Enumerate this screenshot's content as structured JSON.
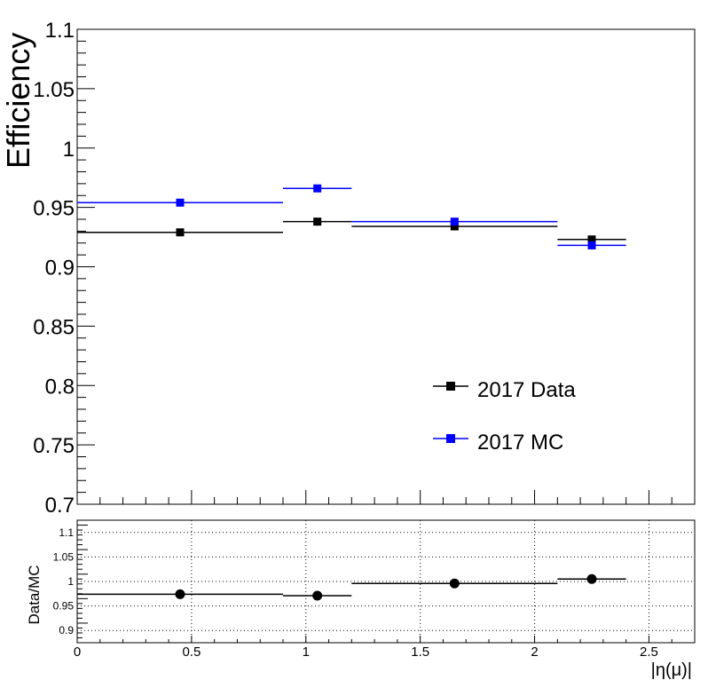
{
  "chart_data": [
    {
      "type": "scatter",
      "ylabel": "Efficiency",
      "xlim": [
        0,
        2.7
      ],
      "ylim": [
        0.7,
        1.1
      ],
      "yticks": [
        "0.7",
        "0.75",
        "0.8",
        "0.85",
        "0.9",
        "0.95",
        "1",
        "1.05",
        "1.1"
      ],
      "legend_position": "bottom-right",
      "series": [
        {
          "name": "2017 Data",
          "color": "#000000",
          "points": [
            {
              "x": 0.45,
              "xlow": 0.0,
              "xhigh": 0.9,
              "y": 0.929
            },
            {
              "x": 1.05,
              "xlow": 0.9,
              "xhigh": 1.2,
              "y": 0.938
            },
            {
              "x": 1.65,
              "xlow": 1.2,
              "xhigh": 2.1,
              "y": 0.934
            },
            {
              "x": 2.25,
              "xlow": 2.1,
              "xhigh": 2.4,
              "y": 0.923
            }
          ]
        },
        {
          "name": "2017 MC",
          "color": "#0000ff",
          "points": [
            {
              "x": 0.45,
              "xlow": 0.0,
              "xhigh": 0.9,
              "y": 0.954
            },
            {
              "x": 1.05,
              "xlow": 0.9,
              "xhigh": 1.2,
              "y": 0.966
            },
            {
              "x": 1.65,
              "xlow": 1.2,
              "xhigh": 2.1,
              "y": 0.938
            },
            {
              "x": 2.25,
              "xlow": 2.1,
              "xhigh": 2.4,
              "y": 0.918
            }
          ]
        }
      ]
    },
    {
      "type": "scatter",
      "ylabel": "Data/MC",
      "xlabel": "|η(μ)|",
      "xlim": [
        0,
        2.7
      ],
      "ylim": [
        0.875,
        1.125
      ],
      "grid": true,
      "xticks": [
        "0",
        "0.5",
        "1",
        "1.5",
        "2",
        "2.5"
      ],
      "yticks": [
        "0.9",
        "0.95",
        "1",
        "1.05",
        "1.1"
      ],
      "series": [
        {
          "color": "#000000",
          "points": [
            {
              "x": 0.45,
              "xlow": 0.0,
              "xhigh": 0.9,
              "y": 0.974
            },
            {
              "x": 1.05,
              "xlow": 0.9,
              "xhigh": 1.2,
              "y": 0.971
            },
            {
              "x": 1.65,
              "xlow": 1.2,
              "xhigh": 2.1,
              "y": 0.996
            },
            {
              "x": 2.25,
              "xlow": 2.1,
              "xhigh": 2.4,
              "y": 1.005
            }
          ]
        }
      ]
    }
  ]
}
